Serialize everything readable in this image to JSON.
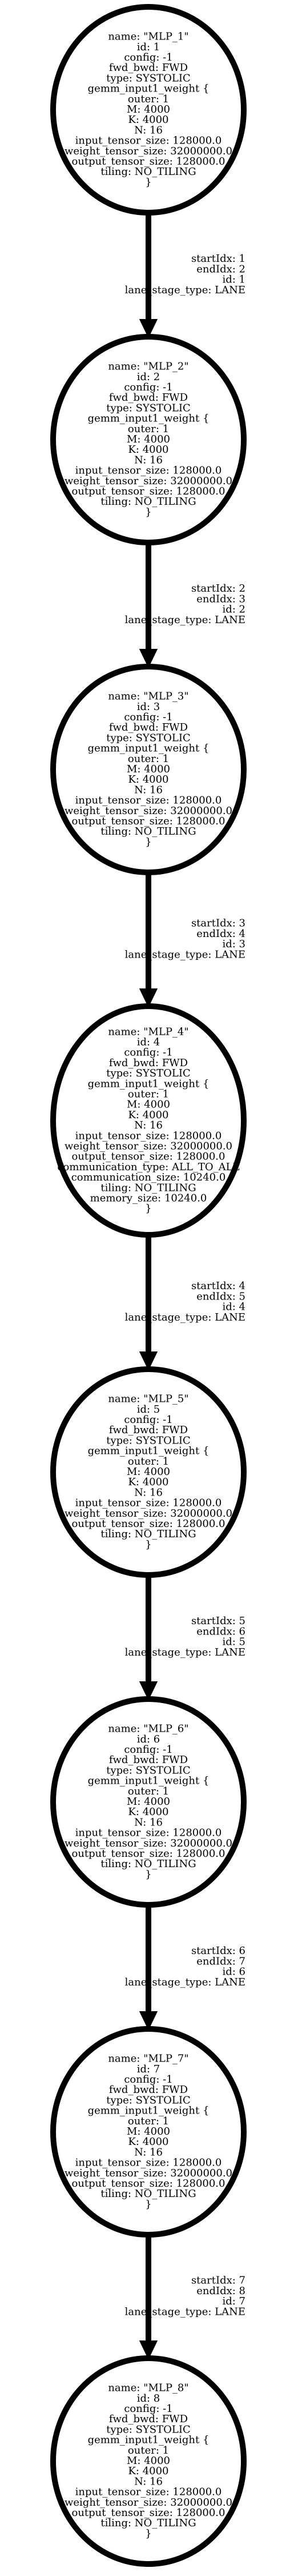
{
  "nodes": [
    {
      "lines": [
        "name: \"MLP_1\"",
        "id: 1",
        "config: -1",
        "fwd_bwd: FWD",
        "type: SYSTOLIC",
        "gemm_input1_weight {",
        "outer: 1",
        "M: 4000",
        "K: 4000",
        "N: 16",
        "input_tensor_size: 128000.0",
        "weight_tensor_size: 32000000.0",
        "output_tensor_size: 128000.0",
        "tiling: NO_TILING",
        "}"
      ]
    },
    {
      "lines": [
        "name: \"MLP_2\"",
        "id: 2",
        "config: -1",
        "fwd_bwd: FWD",
        "type: SYSTOLIC",
        "gemm_input1_weight {",
        "outer: 1",
        "M: 4000",
        "K: 4000",
        "N: 16",
        "input_tensor_size: 128000.0",
        "weight_tensor_size: 32000000.0",
        "output_tensor_size: 128000.0",
        "tiling: NO_TILING",
        "}"
      ]
    },
    {
      "lines": [
        "name: \"MLP_3\"",
        "id: 3",
        "config: -1",
        "fwd_bwd: FWD",
        "type: SYSTOLIC",
        "gemm_input1_weight {",
        "outer: 1",
        "M: 4000",
        "K: 4000",
        "N: 16",
        "input_tensor_size: 128000.0",
        "weight_tensor_size: 32000000.0",
        "output_tensor_size: 128000.0",
        "tiling: NO_TILING",
        "}"
      ]
    },
    {
      "lines": [
        "name: \"MLP_4\"",
        "id: 4",
        "config: -1",
        "fwd_bwd: FWD",
        "type: SYSTOLIC",
        "gemm_input1_weight {",
        "outer: 1",
        "M: 4000",
        "K: 4000",
        "N: 16",
        "input_tensor_size: 128000.0",
        "weight_tensor_size: 32000000.0",
        "output_tensor_size: 128000.0",
        "communication_type: ALL_TO_ALL",
        "communication_size: 10240.0",
        "tiling: NO_TILING",
        "memory_size: 10240.0",
        "}"
      ]
    },
    {
      "lines": [
        "name: \"MLP_5\"",
        "id: 5",
        "config: -1",
        "fwd_bwd: FWD",
        "type: SYSTOLIC",
        "gemm_input1_weight {",
        "outer: 1",
        "M: 4000",
        "K: 4000",
        "N: 16",
        "input_tensor_size: 128000.0",
        "weight_tensor_size: 32000000.0",
        "output_tensor_size: 128000.0",
        "tiling: NO_TILING",
        "}"
      ]
    },
    {
      "lines": [
        "name: \"MLP_6\"",
        "id: 6",
        "config: -1",
        "fwd_bwd: FWD",
        "type: SYSTOLIC",
        "gemm_input1_weight {",
        "outer: 1",
        "M: 4000",
        "K: 4000",
        "N: 16",
        "input_tensor_size: 128000.0",
        "weight_tensor_size: 32000000.0",
        "output_tensor_size: 128000.0",
        "tiling: NO_TILING",
        "}"
      ]
    },
    {
      "lines": [
        "name: \"MLP_7\"",
        "id: 7",
        "config: -1",
        "fwd_bwd: FWD",
        "type: SYSTOLIC",
        "gemm_input1_weight {",
        "outer: 1",
        "M: 4000",
        "K: 4000",
        "N: 16",
        "input_tensor_size: 128000.0",
        "weight_tensor_size: 32000000.0",
        "output_tensor_size: 128000.0",
        "tiling: NO_TILING",
        "}"
      ]
    },
    {
      "lines": [
        "name: \"MLP_8\"",
        "id: 8",
        "config: -1",
        "fwd_bwd: FWD",
        "type: SYSTOLIC",
        "gemm_input1_weight {",
        "outer: 1",
        "M: 4000",
        "K: 4000",
        "N: 16",
        "input_tensor_size: 128000.0",
        "weight_tensor_size: 32000000.0",
        "output_tensor_size: 128000.0",
        "tiling: NO_TILING",
        "}"
      ]
    }
  ],
  "edges": [
    {
      "lines": [
        "startIdx: 1",
        "endIdx: 2",
        "id: 1",
        "lane_stage_type: LANE"
      ]
    },
    {
      "lines": [
        "startIdx: 2",
        "endIdx: 3",
        "id: 2",
        "lane_stage_type: LANE"
      ]
    },
    {
      "lines": [
        "startIdx: 3",
        "endIdx: 4",
        "id: 3",
        "lane_stage_type: LANE"
      ]
    },
    {
      "lines": [
        "startIdx: 4",
        "endIdx: 5",
        "id: 4",
        "lane_stage_type: LANE"
      ]
    },
    {
      "lines": [
        "startIdx: 5",
        "endIdx: 6",
        "id: 5",
        "lane_stage_type: LANE"
      ]
    },
    {
      "lines": [
        "startIdx: 6",
        "endIdx: 7",
        "id: 6",
        "lane_stage_type: LANE"
      ]
    },
    {
      "lines": [
        "startIdx: 7",
        "endIdx: 8",
        "id: 7",
        "lane_stage_type: LANE"
      ]
    }
  ]
}
